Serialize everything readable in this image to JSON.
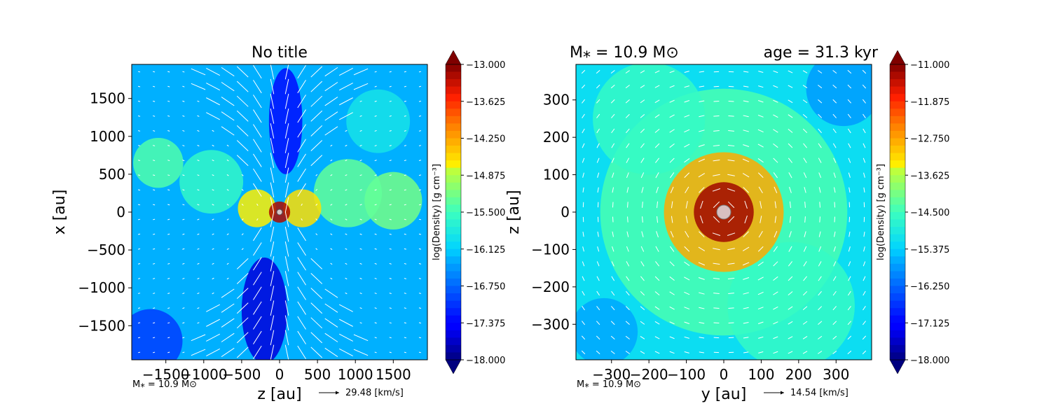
{
  "chart_data": [
    {
      "type": "heatmap",
      "title": "No title",
      "xlabel": "z [au]",
      "ylabel": "x [au]",
      "xlim": [
        -1950,
        1950
      ],
      "ylim": [
        -1950,
        1950
      ],
      "xticks": [
        -1500,
        -1000,
        -500,
        0,
        500,
        1000,
        1500
      ],
      "xtick_labels": [
        "−1500",
        "−1000",
        "−500",
        "0",
        "500",
        "1000",
        "1500"
      ],
      "yticks": [
        -1500,
        -1000,
        -500,
        0,
        500,
        1000,
        1500
      ],
      "ytick_labels": [
        "−1500",
        "−1000",
        "−500",
        "0",
        "500",
        "1000",
        "1500"
      ],
      "colorbar": {
        "label": "log(Density) [g cm⁻³]",
        "range": [
          -18.0,
          -13.0
        ],
        "ticks": [
          -13.0,
          -13.625,
          -14.25,
          -14.875,
          -15.5,
          -16.125,
          -16.75,
          -17.375,
          -18.0
        ],
        "tick_labels": [
          "−13.000",
          "−13.625",
          "−14.250",
          "−14.875",
          "−15.500",
          "−16.125",
          "−16.750",
          "−17.375",
          "−18.000"
        ]
      },
      "corner_note": "M⁎ = 10.9 M⊙",
      "vector_key_label": "29.48 [km/s]",
      "background_level": -16.3,
      "features": [
        {
          "kind": "blob",
          "x": 1300,
          "y": 1200,
          "r": 420,
          "level": -15.9
        },
        {
          "kind": "blob",
          "x": -1600,
          "y": 650,
          "r": 330,
          "level": -15.4
        },
        {
          "kind": "blob",
          "x": 1500,
          "y": 150,
          "r": 380,
          "level": -15.2
        },
        {
          "kind": "blob",
          "x": 900,
          "y": 250,
          "r": 450,
          "level": -15.3
        },
        {
          "kind": "blob",
          "x": -900,
          "y": 400,
          "r": 420,
          "level": -15.6
        },
        {
          "kind": "blob",
          "x": -300,
          "y": 50,
          "r": 250,
          "level": -14.7
        },
        {
          "kind": "blob",
          "x": 300,
          "y": 50,
          "r": 250,
          "level": -14.6
        },
        {
          "kind": "blob",
          "x": 0,
          "y": 0,
          "r": 140,
          "level": -13.2
        },
        {
          "kind": "cone",
          "x": -200,
          "y": -1300,
          "rx": 300,
          "ry": 700,
          "level": -17.6
        },
        {
          "kind": "cone",
          "x": 80,
          "y": 1200,
          "rx": 220,
          "ry": 700,
          "level": -17.3
        },
        {
          "kind": "blob",
          "x": -1700,
          "y": -1700,
          "r": 420,
          "level": -17.0
        }
      ],
      "flow": "bipolar outflow along vertical axis",
      "star": {
        "x": 0,
        "y": 0
      }
    },
    {
      "type": "heatmap",
      "title": "M⁎ = 10.9 M⊙",
      "title_right": "age = 31.3 kyr",
      "xlabel": "y [au]",
      "ylabel": "z [au]",
      "xlim": [
        -395,
        395
      ],
      "ylim": [
        -395,
        395
      ],
      "xticks": [
        -300,
        -200,
        -100,
        0,
        100,
        200,
        300
      ],
      "xtick_labels": [
        "−300",
        "−200",
        "−100",
        "0",
        "100",
        "200",
        "300"
      ],
      "yticks": [
        -300,
        -200,
        -100,
        0,
        100,
        200,
        300
      ],
      "ytick_labels": [
        "−300",
        "−200",
        "−100",
        "0",
        "100",
        "200",
        "300"
      ],
      "colorbar": {
        "label": "log(Density) [g cm⁻³]",
        "range": [
          -18.0,
          -11.0
        ],
        "ticks": [
          -11.0,
          -11.875,
          -12.75,
          -13.625,
          -14.5,
          -15.375,
          -16.25,
          -17.125,
          -18.0
        ],
        "tick_labels": [
          "−11.000",
          "−11.875",
          "−12.750",
          "−13.625",
          "−14.500",
          "−15.375",
          "−16.250",
          "−17.125",
          "−18.000"
        ]
      },
      "corner_note": "M⁎ = 10.9 M⊙",
      "vector_key_label": "14.54 [km/s]",
      "background_level": -15.2,
      "features": [
        {
          "kind": "blob",
          "x": 0,
          "y": 0,
          "r": 330,
          "level": -14.4
        },
        {
          "kind": "blob",
          "x": -200,
          "y": 250,
          "r": 150,
          "level": -14.6
        },
        {
          "kind": "blob",
          "x": 180,
          "y": -250,
          "r": 170,
          "level": -14.6
        },
        {
          "kind": "blob",
          "x": 0,
          "y": 0,
          "r": 160,
          "level": -12.8
        },
        {
          "kind": "blob",
          "x": 0,
          "y": 0,
          "r": 80,
          "level": -11.2
        },
        {
          "kind": "blob",
          "x": 320,
          "y": 330,
          "r": 100,
          "level": -15.8
        },
        {
          "kind": "blob",
          "x": -320,
          "y": -320,
          "r": 90,
          "level": -15.7
        }
      ],
      "flow": "rotation",
      "star": {
        "x": 0,
        "y": 0
      }
    }
  ]
}
